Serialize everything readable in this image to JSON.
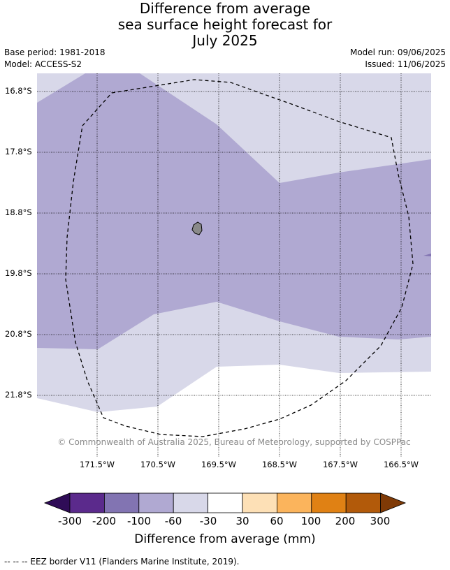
{
  "title": {
    "line1": "Difference from average",
    "line2": "sea surface height forecast for",
    "line3": "July 2025"
  },
  "meta": {
    "base_period": "Base period: 1981-2018",
    "model": "Model: ACCESS-S2",
    "model_run": "Model run: 09/06/2025",
    "issued": "Issued: 11/06/2025"
  },
  "map": {
    "latitude_labels": [
      "16.8°S",
      "17.8°S",
      "18.8°S",
      "19.8°S",
      "20.8°S",
      "21.8°S"
    ],
    "longitude_labels": [
      "171.5°W",
      "170.5°W",
      "169.5°W",
      "168.5°W",
      "167.5°W",
      "166.5°W"
    ],
    "copyright": "© Commonwealth of Australia 2025, Bureau of Meteorology, supported by COSPPac"
  },
  "colorbar": {
    "tick_labels": [
      "-300",
      "-200",
      "-100",
      "-60",
      "-30",
      "30",
      "60",
      "100",
      "200",
      "300"
    ],
    "colors": [
      "#2f0c57",
      "#5b2a8c",
      "#8274b2",
      "#b0a9d2",
      "#d8d8e9",
      "#ffffff",
      "#fde0b6",
      "#fbb45c",
      "#e08114",
      "#b25a0a",
      "#7f3a06"
    ],
    "title": "Difference from average (mm)"
  },
  "footer": {
    "eez_note": "--  --  -- EEZ border V11 (Flanders Marine Institute, 2019)."
  }
}
